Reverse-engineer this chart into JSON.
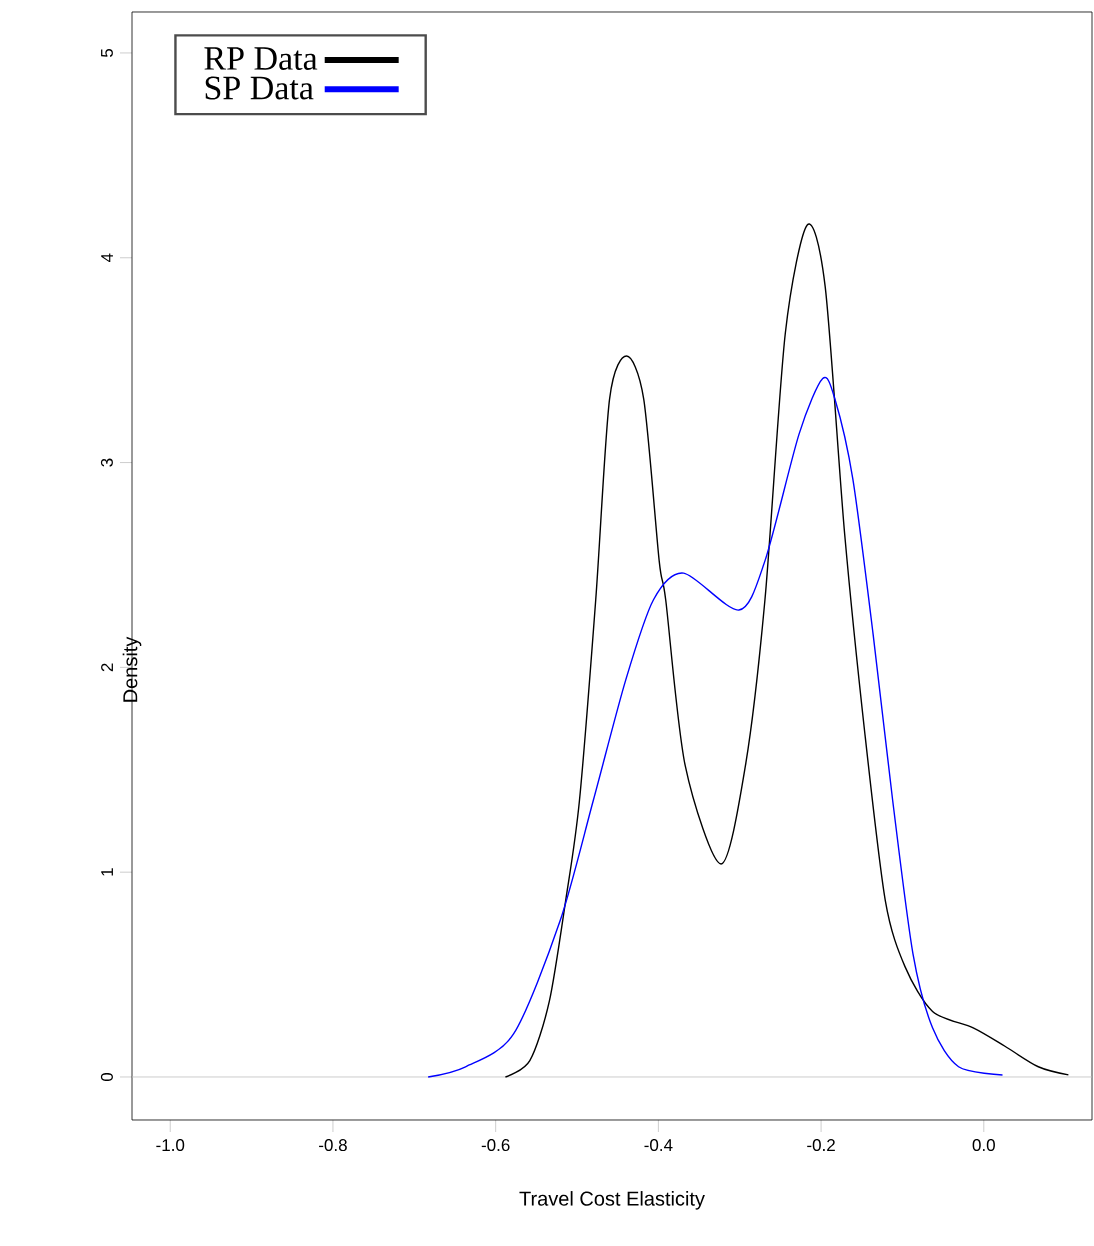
{
  "chart_data": {
    "type": "line",
    "xlabel": "Travel Cost Elasticity",
    "ylabel": "Density",
    "xlim": [
      -1.047,
      0.133
    ],
    "ylim": [
      -0.21,
      5.2
    ],
    "xticks": [
      {
        "value": -1.0,
        "label": "-1.0"
      },
      -0.8,
      -0.6,
      -0.4,
      -0.2,
      {
        "value": 0.0,
        "label": "0.0"
      }
    ],
    "yticks": [
      0,
      1,
      2,
      3,
      4,
      5
    ],
    "legend": "top left",
    "grid": false,
    "marker": "none",
    "line_style": "solid",
    "ref_lines": [
      {
        "axis": "y",
        "value": 0,
        "color": "#bebebe"
      }
    ],
    "series": [
      {
        "name": "RP Data",
        "color": "#000000",
        "x": [
          -0.588,
          -0.558,
          -0.534,
          -0.514,
          -0.497,
          -0.477,
          -0.46,
          -0.439,
          -0.418,
          -0.399,
          -0.391,
          -0.367,
          -0.323,
          -0.293,
          -0.269,
          -0.244,
          -0.217,
          -0.195,
          -0.171,
          -0.146,
          -0.121,
          -0.097,
          -0.063,
          -0.013,
          0.026,
          0.067,
          0.104
        ],
        "values": [
          0,
          0.08,
          0.37,
          0.86,
          1.35,
          2.33,
          3.31,
          3.52,
          3.31,
          2.52,
          2.33,
          1.52,
          1.04,
          1.52,
          2.33,
          3.63,
          4.16,
          3.86,
          2.65,
          1.67,
          0.86,
          0.54,
          0.32,
          0.24,
          0.15,
          0.05,
          0.01
        ]
      },
      {
        "name": "SP Data",
        "color": "#0000ff",
        "x": [
          -0.683,
          -0.637,
          -0.578,
          -0.521,
          -0.48,
          -0.44,
          -0.406,
          -0.369,
          -0.301,
          -0.269,
          -0.227,
          -0.198,
          -0.183,
          -0.161,
          -0.136,
          -0.112,
          -0.087,
          -0.063,
          -0.031,
          0.023
        ],
        "values": [
          0,
          0.05,
          0.21,
          0.76,
          1.35,
          1.94,
          2.33,
          2.46,
          2.28,
          2.52,
          3.14,
          3.41,
          3.31,
          2.92,
          2.16,
          1.35,
          0.6,
          0.24,
          0.05,
          0.01
        ]
      }
    ]
  }
}
